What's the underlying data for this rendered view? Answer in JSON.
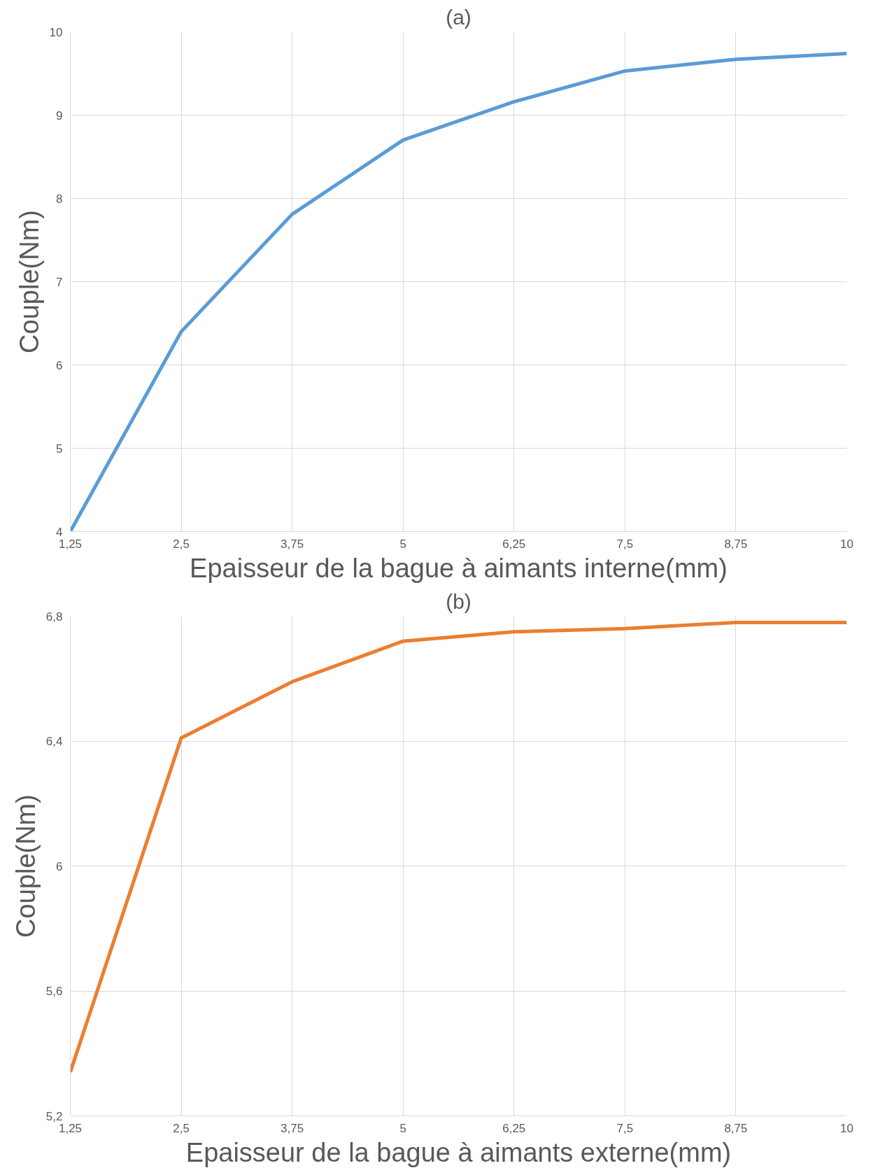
{
  "chart_data": [
    {
      "type": "line",
      "title": "(a)",
      "xlabel": "Epaisseur de la bague à aimants interne(mm)",
      "ylabel": "Couple(Nm)",
      "x": [
        1.25,
        2.5,
        3.75,
        5,
        6.25,
        7.5,
        8.75,
        10
      ],
      "series": [
        {
          "color": "#5b9bd5",
          "values": [
            4.0,
            6.4,
            7.81,
            8.7,
            9.16,
            9.53,
            9.67,
            9.74
          ]
        }
      ],
      "xlim": [
        1.25,
        10
      ],
      "xticks": [
        {
          "value": 1.25,
          "label": "1,25"
        },
        {
          "value": 2.5,
          "label": "2,5"
        },
        {
          "value": 3.75,
          "label": "3,75"
        },
        5,
        {
          "value": 6.25,
          "label": "6,25"
        },
        {
          "value": 7.5,
          "label": "7,5"
        },
        {
          "value": 8.75,
          "label": "8,75"
        },
        10
      ],
      "ylim": [
        4,
        10
      ],
      "yticks": [
        4,
        5,
        6,
        7,
        8,
        9,
        10
      ],
      "grid": true
    },
    {
      "type": "line",
      "title": "(b)",
      "xlabel": "Epaisseur de la bague à aimants externe(mm)",
      "ylabel": "Couple(Nm)",
      "x": [
        1.25,
        2.5,
        3.75,
        5,
        6.25,
        7.5,
        8.75,
        10
      ],
      "series": [
        {
          "color": "#ed7d31",
          "values": [
            5.34,
            6.41,
            6.59,
            6.72,
            6.75,
            6.76,
            6.78,
            6.78
          ]
        }
      ],
      "xlim": [
        1.25,
        10
      ],
      "xticks": [
        {
          "value": 1.25,
          "label": "1,25"
        },
        {
          "value": 2.5,
          "label": "2,5"
        },
        {
          "value": 3.75,
          "label": "3,75"
        },
        5,
        {
          "value": 6.25,
          "label": "6,25"
        },
        {
          "value": 7.5,
          "label": "7,5"
        },
        {
          "value": 8.75,
          "label": "8,75"
        },
        10
      ],
      "ylim": [
        5.2,
        6.8
      ],
      "yticks": [
        {
          "value": 5.2,
          "label": "5,2"
        },
        {
          "value": 5.6,
          "label": "5,6"
        },
        6,
        {
          "value": 6.4,
          "label": "6,4"
        },
        {
          "value": 6.8,
          "label": "6,8"
        }
      ],
      "grid": true
    }
  ]
}
